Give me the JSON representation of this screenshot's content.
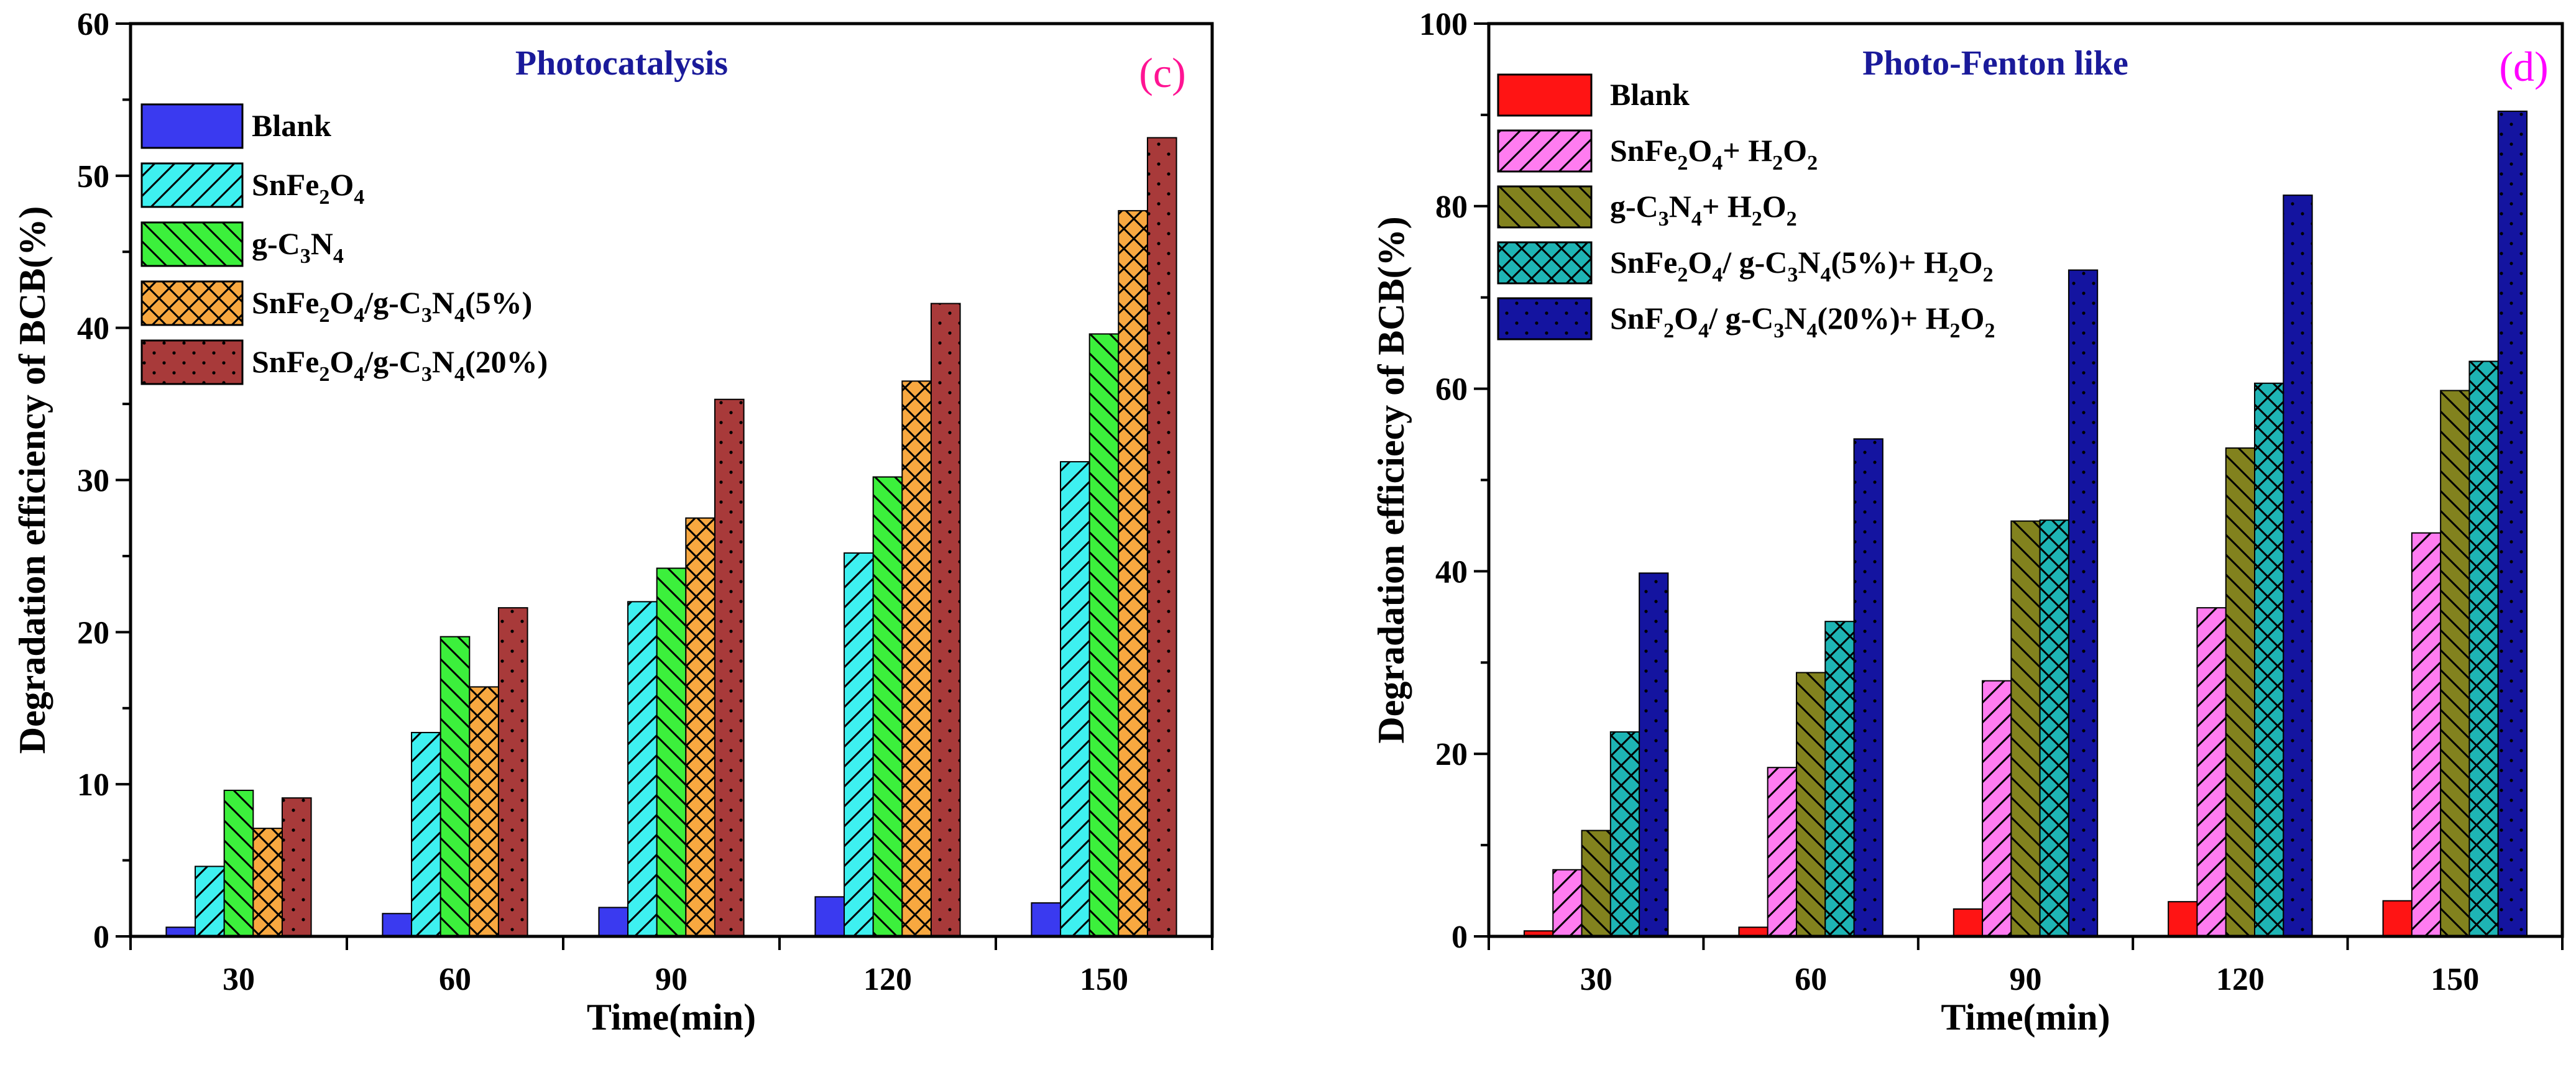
{
  "chart_data": [
    {
      "type": "bar",
      "title": "Photocatalysis",
      "panel_label": "(c)",
      "xlabel": "Time(min)",
      "ylabel": "Degradation efficiency of BCB(%)",
      "categories": [
        "30",
        "60",
        "90",
        "120",
        "150"
      ],
      "ylim": [
        0,
        60
      ],
      "yticks": [
        0,
        10,
        20,
        30,
        40,
        50,
        60
      ],
      "legend_position": "top-left",
      "grid": false,
      "colors": {
        "title": "#1a1a9a",
        "panel_label": "#ff1493"
      },
      "series": [
        {
          "name": "Blank",
          "legend_markup": "Blank",
          "color": "#3a3af0",
          "pattern": "solid",
          "values": [
            0.6,
            1.5,
            1.9,
            2.6,
            2.2
          ]
        },
        {
          "name": "SnFe2O4",
          "legend_markup": "SnFe{2}O{4}",
          "color": "#3ef0f0",
          "pattern": "diag-right",
          "values": [
            4.6,
            13.4,
            22.0,
            25.2,
            31.2
          ]
        },
        {
          "name": "g-C3N4",
          "legend_markup": "g-C{3}N{4}",
          "color": "#3cf03c",
          "pattern": "diag-left",
          "values": [
            9.6,
            19.7,
            24.2,
            30.2,
            39.6
          ]
        },
        {
          "name": "SnFe2O4/g-C3N4(5%)",
          "legend_markup": "SnFe{2}O{4}/g-C{3}N{4}(5%)",
          "color": "#f8a840",
          "pattern": "cross",
          "values": [
            7.1,
            16.4,
            27.5,
            36.5,
            47.7
          ]
        },
        {
          "name": "SnFe2O4/g-C3N4(20%)",
          "legend_markup": "SnFe{2}O{4}/g-C{3}N{4}(20%)",
          "color": "#a83a3a",
          "pattern": "dots",
          "values": [
            9.1,
            21.6,
            35.3,
            41.6,
            52.5
          ]
        }
      ]
    },
    {
      "type": "bar",
      "title": "Photo-Fenton like",
      "panel_label": "(d)",
      "xlabel": "Time(min)",
      "ylabel": "Degradation efficiecy of BCB(%)",
      "categories": [
        "30",
        "60",
        "90",
        "120",
        "150"
      ],
      "ylim": [
        0,
        100
      ],
      "yticks": [
        0,
        20,
        40,
        60,
        80,
        100
      ],
      "legend_position": "top-left",
      "grid": false,
      "colors": {
        "title": "#1a1a9a",
        "panel_label": "#ff00ff"
      },
      "series": [
        {
          "name": "Blank",
          "legend_markup": "Blank",
          "color": "#ff1414",
          "pattern": "solid",
          "values": [
            0.6,
            1.0,
            3.0,
            3.8,
            3.9
          ]
        },
        {
          "name": "SnFe2O4+ H2O2",
          "legend_markup": "SnFe{2}O{4}+ H{2}O{2}",
          "color": "#ff7cf0",
          "pattern": "diag-right",
          "values": [
            7.3,
            18.5,
            28.0,
            36.0,
            44.2
          ]
        },
        {
          "name": "g-C3N4+ H2O2",
          "legend_markup": "g-C{3}N{4}+ H{2}O{2}",
          "color": "#82821e",
          "pattern": "diag-left",
          "values": [
            11.6,
            28.9,
            45.5,
            53.5,
            59.8
          ]
        },
        {
          "name": "SnFe2O4/ g-C3N4(5%)+ H2O2",
          "legend_markup": "SnFe{2}O{4}/ g-C{3}N{4}(5%)+ H{2}O{2}",
          "color": "#1eb4b4",
          "pattern": "cross",
          "values": [
            22.4,
            34.5,
            45.6,
            60.6,
            63.0
          ]
        },
        {
          "name": "SnF2O4/ g-C3N4(20%)+ H2O2",
          "legend_markup": "SnF{2}O{4}/ g-C{3}N{4}(20%)+ H{2}O{2}",
          "color": "#1414a0",
          "pattern": "dots",
          "values": [
            39.8,
            54.5,
            73.0,
            81.2,
            90.4
          ]
        }
      ]
    }
  ]
}
